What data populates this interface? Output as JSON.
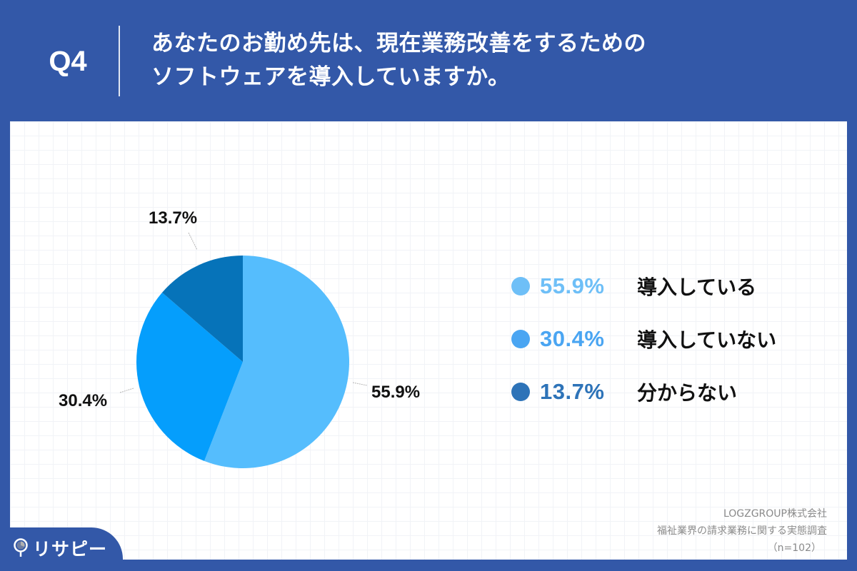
{
  "header": {
    "question_number": "Q4",
    "title_line1": "あなたのお勤め先は、現在業務改善をするための",
    "title_line2": "ソフトウェアを導入していますか。"
  },
  "pie_labels": {
    "slice1": "55.9%",
    "slice2": "30.4%",
    "slice3": "13.7%"
  },
  "legend": [
    {
      "value": "55.9%",
      "label": "導入している",
      "color": "#6EBFF7"
    },
    {
      "value": "30.4%",
      "label": "導入していない",
      "color": "#4AA5F2"
    },
    {
      "value": "13.7%",
      "label": "分からない",
      "color": "#2D73B8"
    }
  ],
  "source": {
    "company": "LOGZGROUP株式会社",
    "survey": "福祉業界の請求業務に関する実態調査",
    "sample": "（n=102）"
  },
  "logo": {
    "text": "リサピー"
  },
  "colors": {
    "background": "#3358A8",
    "slice1": "#55BDFD",
    "slice2": "#059EFC",
    "slice3": "#0673B9"
  },
  "chart_data": {
    "type": "pie",
    "title": "あなたのお勤め先は、現在業務改善をするためのソフトウェアを導入していますか。",
    "categories": [
      "導入している",
      "導入していない",
      "分からない"
    ],
    "values": [
      55.9,
      30.4,
      13.7
    ],
    "unit": "%",
    "colors": [
      "#55BDFD",
      "#059EFC",
      "#0673B9"
    ],
    "start_angle": "12 o'clock, clockwise",
    "legend_position": "right",
    "sample_size": "n=102",
    "source": "LOGZGROUP株式会社 福祉業界の請求業務に関する実態調査"
  }
}
